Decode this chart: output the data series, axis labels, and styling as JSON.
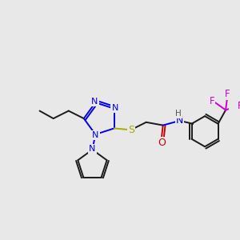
{
  "background_color": "#e8e8e8",
  "colors": {
    "C": "#1a1a1a",
    "N": "#0000ee",
    "O": "#cc0000",
    "S": "#aaaa00",
    "F": "#cc00cc",
    "H": "#555555",
    "bg": "#e8e8e8"
  },
  "lw": 1.4
}
